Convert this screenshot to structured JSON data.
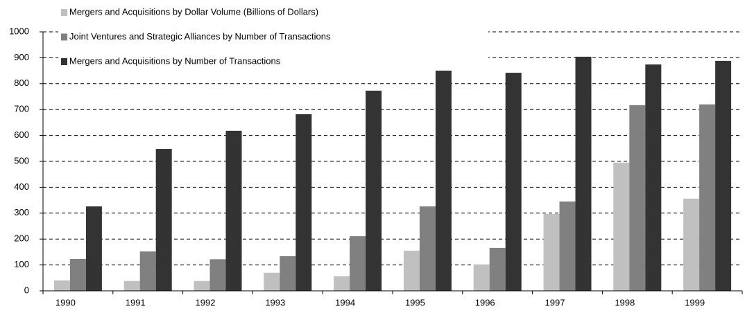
{
  "chart_data": {
    "type": "bar",
    "categories": [
      "1990",
      "1991",
      "1992",
      "1993",
      "1994",
      "1995",
      "1996",
      "1997",
      "1998",
      "1999"
    ],
    "series": [
      {
        "name": "Mergers and Acquisitions by Dollar Volume (Billions of Dollars)",
        "color": "#c0c0c0",
        "values": [
          40,
          38,
          38,
          70,
          56,
          155,
          102,
          297,
          495,
          356
        ]
      },
      {
        "name": "Joint Ventures and Strategic Alliances by Number of Transactions",
        "color": "#808080",
        "values": [
          123,
          152,
          122,
          134,
          211,
          326,
          166,
          345,
          717,
          720
        ]
      },
      {
        "name": "Mergers and Acquisitions by Number of Transactions",
        "color": "#333333",
        "values": [
          326,
          548,
          618,
          682,
          773,
          858,
          842,
          904,
          874,
          888
        ]
      }
    ],
    "ylim": [
      0,
      1000
    ],
    "yticks": [
      0,
      100,
      200,
      300,
      400,
      500,
      600,
      700,
      800,
      900,
      1000
    ],
    "grid": true,
    "legend": "upper left"
  }
}
